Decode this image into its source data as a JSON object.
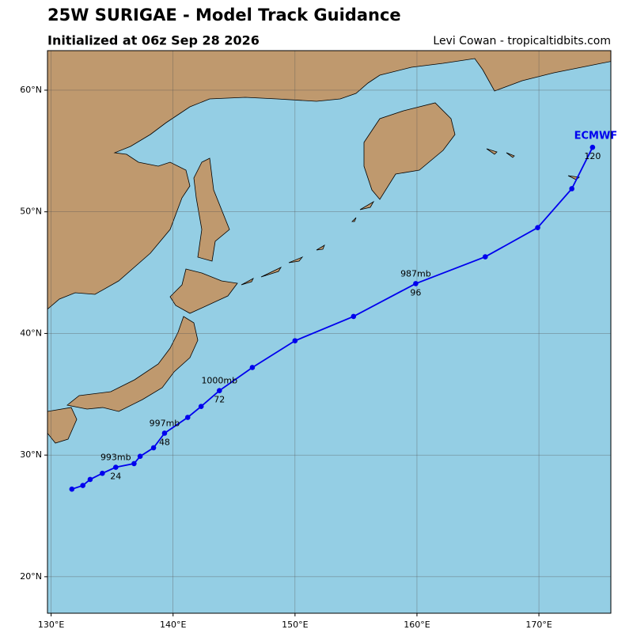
{
  "chart_data": {
    "type": "track",
    "title": "25W SURIGAE - Model Track Guidance",
    "subtitle": "Initialized at 06z Sep 28 2026",
    "credit": "Levi Cowan - tropicaltidbits.com",
    "x": [
      131.7,
      132.6,
      133.2,
      134.2,
      135.3,
      136.8,
      137.3,
      138.4,
      139.3,
      141.2,
      142.3,
      143.8,
      146.5,
      150.0,
      154.8,
      159.9,
      165.6,
      169.9,
      172.7,
      174.4
    ],
    "series": [
      {
        "name": "ECMWF",
        "color": "#0000ee",
        "values": [
          27.2,
          27.5,
          28.0,
          28.5,
          29.0,
          29.3,
          29.9,
          30.6,
          31.8,
          33.1,
          34.0,
          35.3,
          37.2,
          39.4,
          41.4,
          44.1,
          46.3,
          48.7,
          51.9,
          55.3
        ],
        "pressure_labels": [
          null,
          null,
          null,
          null,
          "993mb",
          null,
          null,
          null,
          "997mb",
          null,
          null,
          "1000mb",
          null,
          null,
          null,
          "987mb",
          null,
          null,
          null,
          null
        ],
        "hour_labels": [
          null,
          null,
          null,
          null,
          "24",
          null,
          null,
          null,
          "48",
          null,
          null,
          "72",
          null,
          null,
          null,
          "96",
          null,
          null,
          null,
          "120"
        ]
      }
    ],
    "xlim": [
      129.7,
      175.9
    ],
    "ylim": [
      17.0,
      63.25
    ],
    "xticks": [
      {
        "value": 130,
        "label": "130°E"
      },
      {
        "value": 140,
        "label": "140°E"
      },
      {
        "value": 150,
        "label": "150°E"
      },
      {
        "value": 160,
        "label": "160°E"
      },
      {
        "value": 170,
        "label": "170°E"
      }
    ],
    "yticks": [
      {
        "value": 20,
        "label": "20°N"
      },
      {
        "value": 30,
        "label": "30°N"
      },
      {
        "value": 40,
        "label": "40°N"
      },
      {
        "value": 50,
        "label": "50°N"
      },
      {
        "value": 60,
        "label": "60°N"
      }
    ],
    "grid": true
  }
}
